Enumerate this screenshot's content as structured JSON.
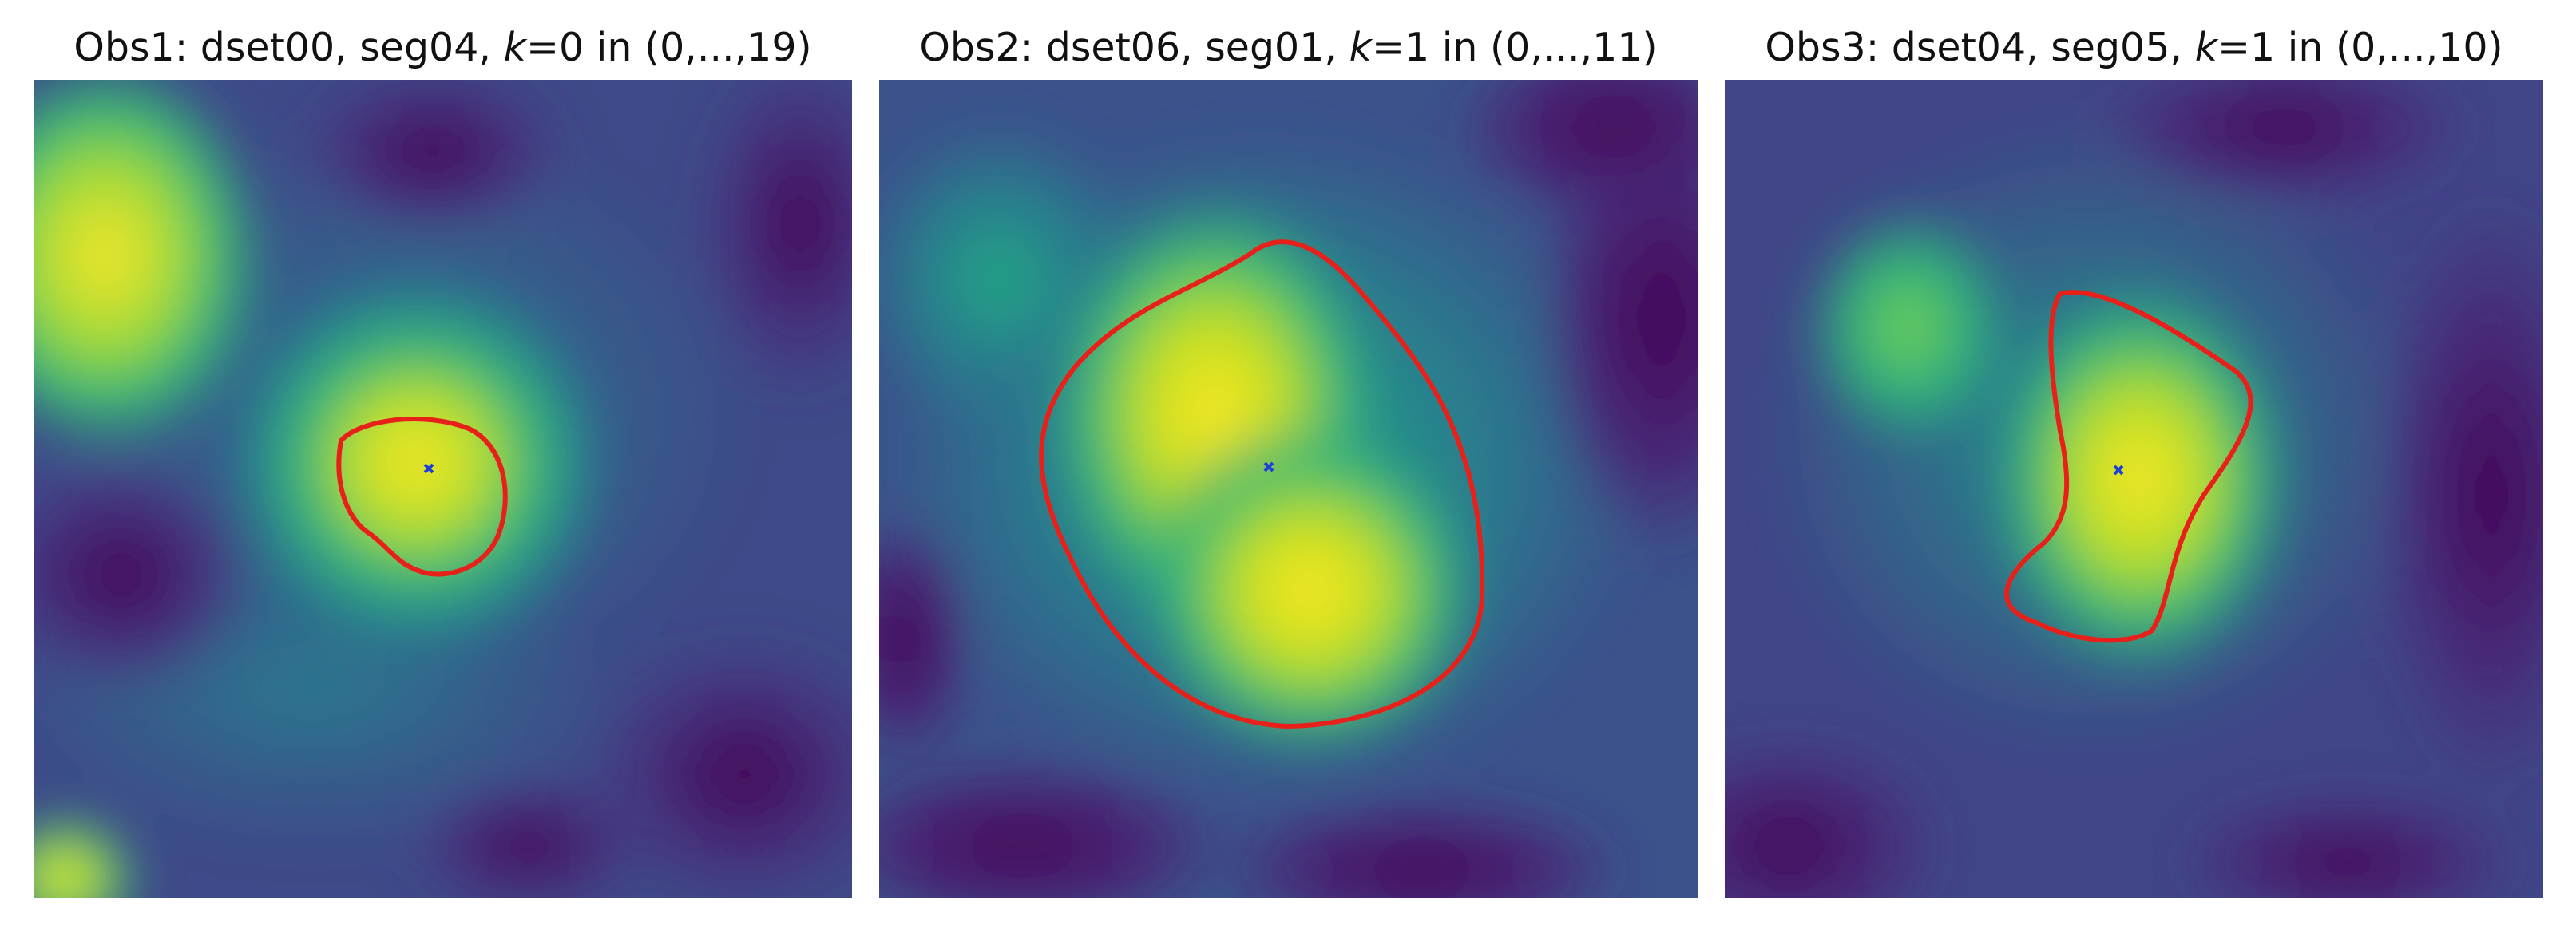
{
  "panels": [
    {
      "title_prefix": "Obs1: dset00, seg04, ",
      "k_symbol": "k",
      "title_suffix": "=0 in (0,...,19)"
    },
    {
      "title_prefix": "Obs2: dset06, seg01, ",
      "k_symbol": "k",
      "title_suffix": "=1 in (0,...,11)"
    },
    {
      "title_prefix": "Obs3: dset04, seg05, ",
      "k_symbol": "k",
      "title_suffix": "=1 in (0,...,10)"
    }
  ],
  "colors": {
    "colormap": "viridis",
    "background": "#46327e",
    "contour": "#e8201a",
    "center_marker": "#1f3fd9"
  },
  "marker_icon": "x-marker-icon"
}
